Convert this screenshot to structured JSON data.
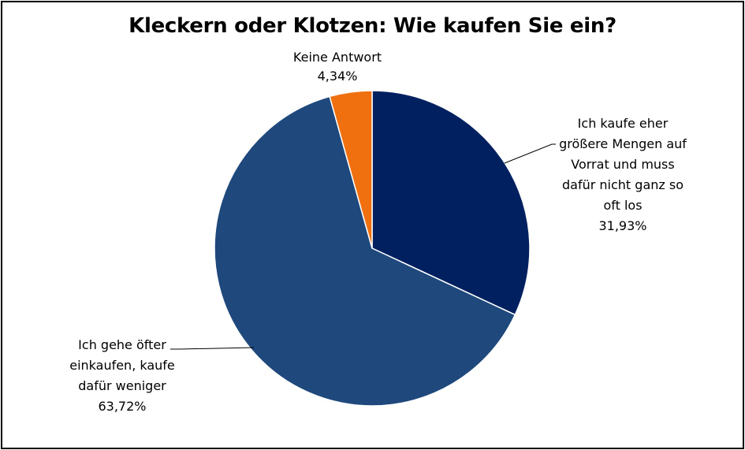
{
  "chart_data": {
    "type": "pie",
    "title": "Kleckern oder Klotzen: Wie kaufen Sie ein?",
    "slices": [
      {
        "label_lines": [
          "Ich kaufe eher",
          "größere Mengen auf",
          "Vorrat und muss",
          "dafür nicht ganz so",
          "oft los"
        ],
        "value": 31.93,
        "value_label": "31,93%",
        "color": "#002060"
      },
      {
        "label_lines": [
          "Ich gehe öfter",
          "einkaufen, kaufe",
          "dafür weniger"
        ],
        "value": 63.72,
        "value_label": "63,72%",
        "color": "#1F497D"
      },
      {
        "label_lines": [
          "Keine Antwort"
        ],
        "value": 4.34,
        "value_label": "4,34%",
        "color": "#F07010"
      }
    ],
    "start": "12 o'clock",
    "direction": "clockwise",
    "legend": "none"
  }
}
